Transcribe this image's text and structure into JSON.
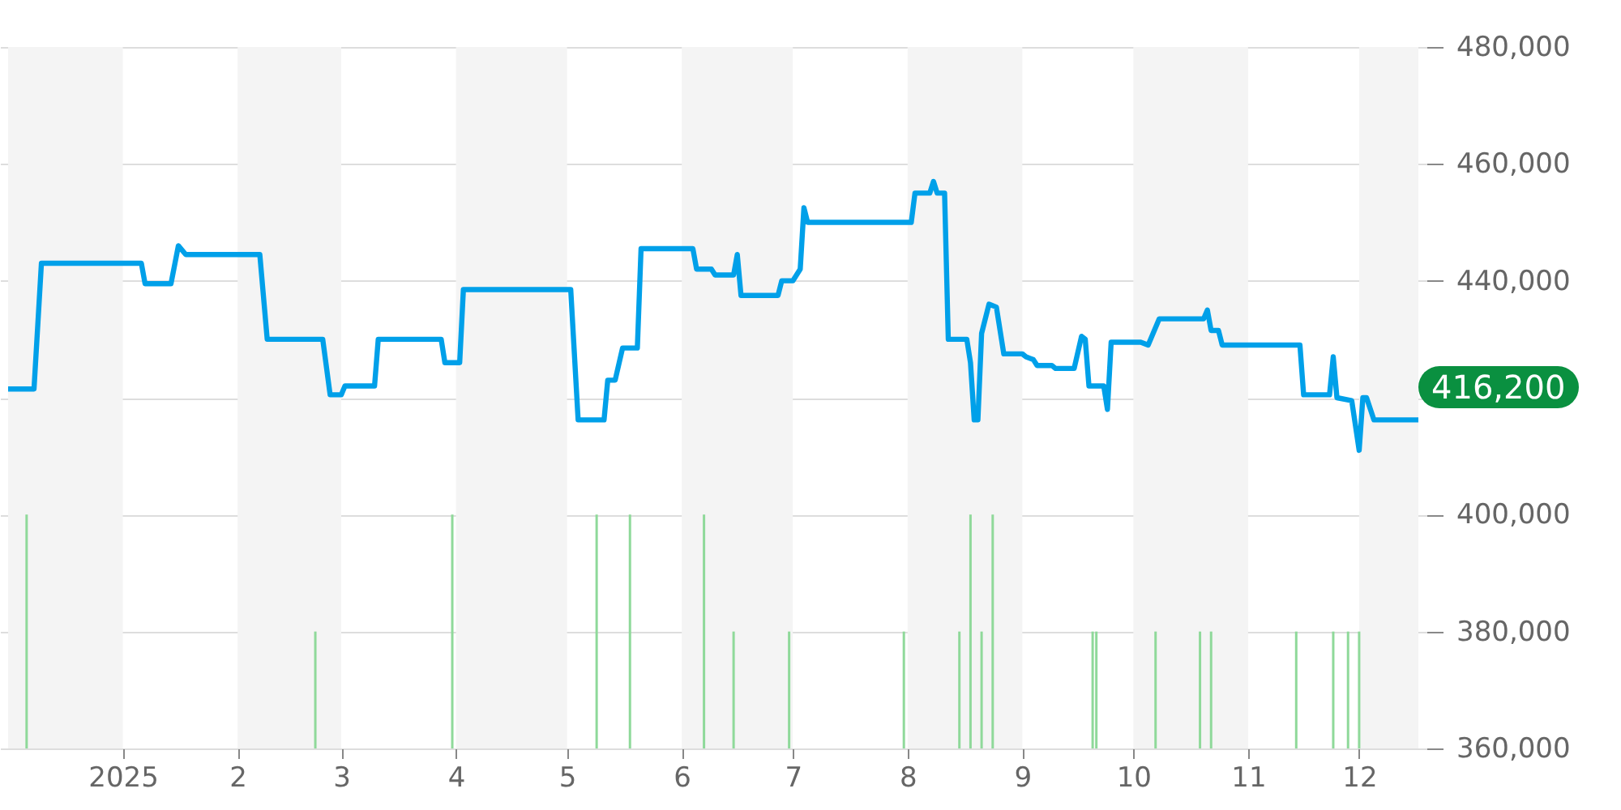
{
  "chart_data": {
    "type": "line",
    "xlim": [
      "2024-12-01",
      "2025-12-17"
    ],
    "xticks": [
      {
        "value": "2025-01-01",
        "label": "2025"
      },
      {
        "value": "2025-02-01",
        "label": "2"
      },
      {
        "value": "2025-03-01",
        "label": "3"
      },
      {
        "value": "2025-04-01",
        "label": "4"
      },
      {
        "value": "2025-05-01",
        "label": "5"
      },
      {
        "value": "2025-06-01",
        "label": "6"
      },
      {
        "value": "2025-07-01",
        "label": "7"
      },
      {
        "value": "2025-08-01",
        "label": "8"
      },
      {
        "value": "2025-09-01",
        "label": "9"
      },
      {
        "value": "2025-10-01",
        "label": "10"
      },
      {
        "value": "2025-11-01",
        "label": "11"
      },
      {
        "value": "2025-12-01",
        "label": "12"
      }
    ],
    "ylim": [
      360000,
      480000
    ],
    "yticks": [
      {
        "value": 360000,
        "label": "360,000"
      },
      {
        "value": 380000,
        "label": "380,000"
      },
      {
        "value": 400000,
        "label": "400,000"
      },
      {
        "value": 420000,
        "label": null
      },
      {
        "value": 440000,
        "label": "440,000"
      },
      {
        "value": 460000,
        "label": "460,000"
      },
      {
        "value": 480000,
        "label": "480,000"
      }
    ],
    "grid": "y",
    "bands": [
      {
        "axis": "x",
        "from": "2024-12-01",
        "to": "2025-01-01",
        "color": "#f4f4f4"
      },
      {
        "axis": "x",
        "from": "2025-02-01",
        "to": "2025-03-01",
        "color": "#f4f4f4"
      },
      {
        "axis": "x",
        "from": "2025-04-01",
        "to": "2025-05-01",
        "color": "#f4f4f4"
      },
      {
        "axis": "x",
        "from": "2025-06-01",
        "to": "2025-07-01",
        "color": "#f4f4f4"
      },
      {
        "axis": "x",
        "from": "2025-08-01",
        "to": "2025-09-01",
        "color": "#f4f4f4"
      },
      {
        "axis": "x",
        "from": "2025-10-01",
        "to": "2025-11-01",
        "color": "#f4f4f4"
      },
      {
        "axis": "x",
        "from": "2025-12-01",
        "to": "2025-12-17",
        "color": "#f4f4f4"
      }
    ],
    "annotations": [
      {
        "text": "416,200",
        "x": "2025-12-17",
        "y": 416200
      }
    ],
    "series": [
      {
        "type": "bar",
        "color": "#8fd99a",
        "x": [
          "2024-12-06",
          "2025-02-22",
          "2025-03-31",
          "2025-05-09",
          "2025-05-18",
          "2025-06-07",
          "2025-06-15",
          "2025-06-30",
          "2025-07-31",
          "2025-08-15",
          "2025-08-18",
          "2025-08-21",
          "2025-08-24",
          "2025-09-20",
          "2025-09-21",
          "2025-10-07",
          "2025-10-19",
          "2025-10-22",
          "2025-11-14",
          "2025-11-24",
          "2025-11-28",
          "2025-12-01"
        ],
        "values": [
          400000,
          380000,
          400000,
          400000,
          400000,
          400000,
          380000,
          380000,
          380000,
          380000,
          400000,
          380000,
          400000,
          380000,
          380000,
          380000,
          380000,
          380000,
          380000,
          380000,
          380000,
          380000
        ]
      },
      {
        "color": "#00a0e9",
        "x": [
          "2024-12-01",
          "2024-12-08",
          "2024-12-10",
          "2025-01-06",
          "2025-01-07",
          "2025-01-14",
          "2025-01-16",
          "2025-01-18",
          "2025-02-07",
          "2025-02-09",
          "2025-02-24",
          "2025-02-26",
          "2025-03-01",
          "2025-03-02",
          "2025-03-10",
          "2025-03-11",
          "2025-03-28",
          "2025-03-29",
          "2025-04-02",
          "2025-04-03",
          "2025-05-02",
          "2025-05-04",
          "2025-05-11",
          "2025-05-12",
          "2025-05-14",
          "2025-05-16",
          "2025-05-20",
          "2025-05-21",
          "2025-06-04",
          "2025-06-05",
          "2025-06-09",
          "2025-06-10",
          "2025-06-15",
          "2025-06-16",
          "2025-06-17",
          "2025-06-27",
          "2025-06-28",
          "2025-07-01",
          "2025-07-03",
          "2025-07-04",
          "2025-07-05",
          "2025-07-15",
          "2025-07-17",
          "2025-08-02",
          "2025-08-03",
          "2025-08-07",
          "2025-08-08",
          "2025-08-09",
          "2025-08-11",
          "2025-08-12",
          "2025-08-17",
          "2025-08-18",
          "2025-08-19",
          "2025-08-20",
          "2025-08-21",
          "2025-08-23",
          "2025-08-25",
          "2025-08-27",
          "2025-09-01",
          "2025-09-02",
          "2025-09-04",
          "2025-09-05",
          "2025-09-09",
          "2025-09-10",
          "2025-09-15",
          "2025-09-17",
          "2025-09-18",
          "2025-09-19",
          "2025-09-23",
          "2025-09-24",
          "2025-09-25",
          "2025-10-03",
          "2025-10-05",
          "2025-10-08",
          "2025-10-20",
          "2025-10-21",
          "2025-10-22",
          "2025-10-24",
          "2025-10-25",
          "2025-11-15",
          "2025-11-16",
          "2025-11-23",
          "2025-11-24",
          "2025-11-25",
          "2025-11-29",
          "2025-12-01",
          "2025-12-02",
          "2025-12-03",
          "2025-12-05",
          "2025-12-17"
        ],
        "values": [
          421500,
          421500,
          443000,
          443000,
          439500,
          439500,
          446000,
          444500,
          444500,
          430000,
          430000,
          420500,
          420500,
          422000,
          422000,
          430000,
          430000,
          426000,
          426000,
          438500,
          438500,
          416200,
          416200,
          423000,
          423000,
          428500,
          428500,
          445500,
          445500,
          442000,
          442000,
          441000,
          441000,
          444500,
          437500,
          437500,
          440000,
          440000,
          442000,
          452500,
          450000,
          450000,
          450000,
          450000,
          455000,
          455000,
          457000,
          455000,
          455000,
          430000,
          430000,
          426000,
          416200,
          416200,
          431000,
          436000,
          435500,
          427500,
          427500,
          427000,
          426500,
          425500,
          425500,
          425000,
          425000,
          430500,
          430000,
          422000,
          422000,
          418000,
          429500,
          429500,
          429000,
          433500,
          433500,
          435000,
          431500,
          431500,
          429000,
          429000,
          420500,
          420500,
          427000,
          420000,
          419500,
          411000,
          420000,
          420000,
          416200,
          416200
        ]
      }
    ]
  }
}
